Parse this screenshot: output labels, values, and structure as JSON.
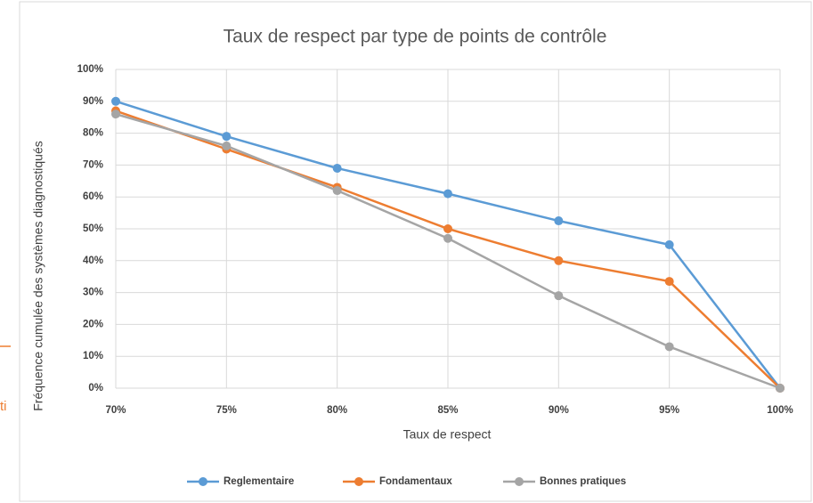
{
  "chart_data": {
    "type": "line",
    "title": "Taux de respect par type de points de contrôle",
    "x_label": "Taux de respect",
    "y_label": "Fréquence cumulée des systèmes diagnostiqués",
    "x": [
      70,
      75,
      80,
      85,
      90,
      95,
      100
    ],
    "series": [
      {
        "name": "Reglementaire",
        "color": "#5b9bd5",
        "values": [
          90,
          79,
          69,
          61,
          52.5,
          45,
          0
        ]
      },
      {
        "name": "Fondamentaux",
        "color": "#ed7d31",
        "values": [
          87,
          75,
          63,
          50,
          40,
          33.5,
          0
        ]
      },
      {
        "name": "Bonnes pratiques",
        "color": "#a5a5a5",
        "values": [
          86,
          76,
          62,
          47,
          29,
          13,
          0
        ]
      }
    ],
    "xlim": [
      70,
      100
    ],
    "xticks": [
      {
        "value": 70,
        "label": "70%"
      },
      {
        "value": 75,
        "label": "75%"
      },
      {
        "value": 80,
        "label": "80%"
      },
      {
        "value": 85,
        "label": "85%"
      },
      {
        "value": 90,
        "label": "90%"
      },
      {
        "value": 95,
        "label": "95%"
      },
      {
        "value": 100,
        "label": "100%"
      }
    ],
    "ylim": [
      0,
      100
    ],
    "yticks": [
      {
        "value": 0,
        "label": "0%"
      },
      {
        "value": 10,
        "label": "10%"
      },
      {
        "value": 20,
        "label": "20%"
      },
      {
        "value": 30,
        "label": "30%"
      },
      {
        "value": 40,
        "label": "40%"
      },
      {
        "value": 50,
        "label": "50%"
      },
      {
        "value": 60,
        "label": "60%"
      },
      {
        "value": 70,
        "label": "70%"
      },
      {
        "value": 80,
        "label": "80%"
      },
      {
        "value": 90,
        "label": "90%"
      },
      {
        "value": 100,
        "label": "100%"
      }
    ],
    "grid": true,
    "legend": "bottom"
  },
  "page_fragment": "ti"
}
